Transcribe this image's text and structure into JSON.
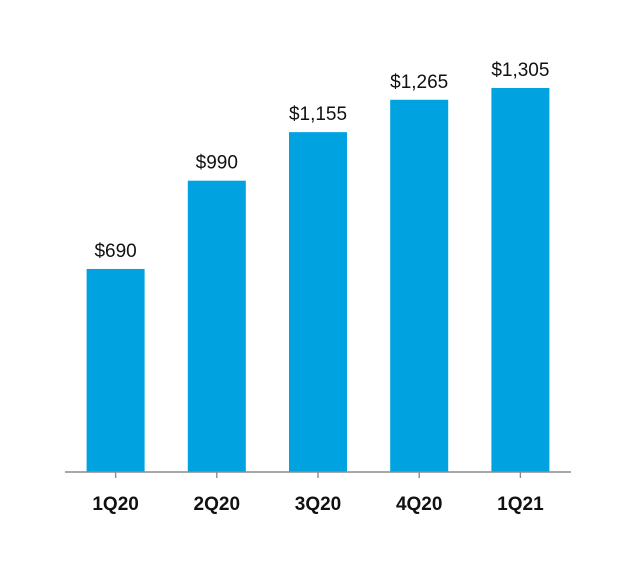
{
  "colors": {
    "bar": "#00A3E0",
    "axis": "#8C8C8C",
    "text": "#111111"
  },
  "chart_data": {
    "type": "bar",
    "title": "",
    "xlabel": "",
    "ylabel": "",
    "grid": false,
    "legend": "none",
    "ylim": [
      0,
      1305
    ],
    "categories": [
      "1Q20",
      "2Q20",
      "3Q20",
      "4Q20",
      "1Q21"
    ],
    "values": [
      690,
      990,
      1155,
      1265,
      1305
    ],
    "value_labels": [
      "$690",
      "$990",
      "$1,155",
      "$1,265",
      "$1,305"
    ]
  }
}
